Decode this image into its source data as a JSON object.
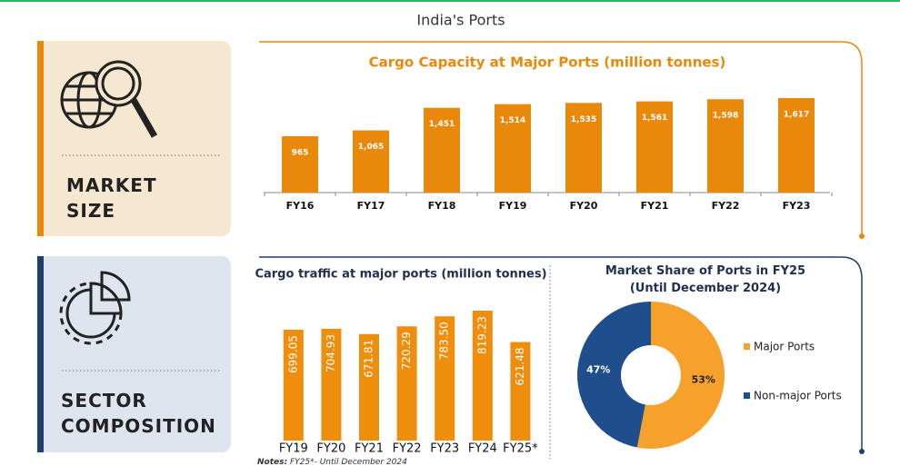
{
  "title": "India's Ports",
  "sections": [
    "MARKET SIZE",
    "SECTOR COMPOSITION"
  ],
  "notes_label": "Notes:",
  "notes": "FY25*- Until December 2024",
  "chart_data": [
    {
      "type": "bar",
      "title": "Cargo Capacity at Major Ports (million tonnes)",
      "categories": [
        "FY16",
        "FY17",
        "FY18",
        "FY19",
        "FY20",
        "FY21",
        "FY22",
        "FY23"
      ],
      "values": [
        965,
        1065,
        1451,
        1514,
        1535,
        1561,
        1598,
        1617
      ],
      "value_labels": [
        "965",
        "1,065",
        "1,451",
        "1,514",
        "1,535",
        "1,561",
        "1,598",
        "1,617"
      ],
      "color": "#e8890c"
    },
    {
      "type": "bar",
      "title": "Cargo traffic at major ports (million tonnes)",
      "categories": [
        "FY19",
        "FY20",
        "FY21",
        "FY22",
        "FY23",
        "FY24",
        "FY25*"
      ],
      "values": [
        699.05,
        704.93,
        671.81,
        720.29,
        783.5,
        819.23,
        621.48
      ],
      "value_labels": [
        "699.05",
        "704.93",
        "671.81",
        "720.29",
        "783.50",
        "819.23",
        "621.48"
      ],
      "color": "#ef8d0d"
    },
    {
      "type": "pie",
      "title": "Market Share of Ports in FY25 (Until December 2024)",
      "categories": [
        "Major Ports",
        "Non-major Ports"
      ],
      "values": [
        53,
        47
      ],
      "value_labels": [
        "53%",
        "47%"
      ],
      "colors": [
        "#f5a12b",
        "#1f4e8c"
      ]
    }
  ]
}
